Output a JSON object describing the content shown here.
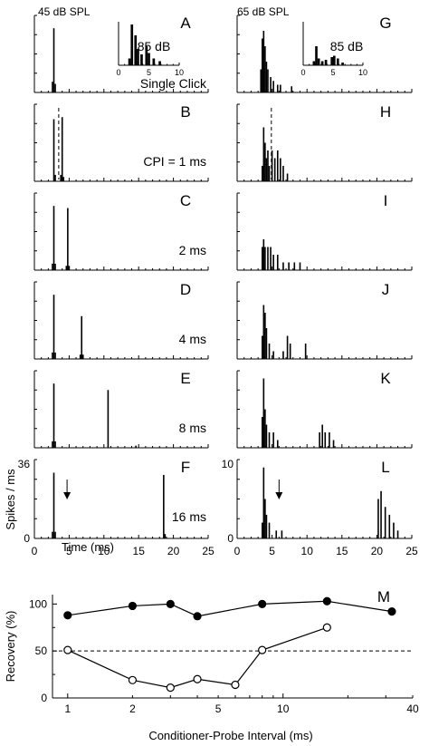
{
  "header": {
    "left": "45 dB SPL",
    "right": "65 dB SPL"
  },
  "inset": {
    "level": "85 dB",
    "xticks": [
      "0",
      "5",
      "10"
    ]
  },
  "raster_axes": {
    "ylabel": "Spikes / ms",
    "xlabel": "Time (ms)",
    "xticks": [
      "0",
      "5",
      "10",
      "15",
      "20",
      "25"
    ],
    "left_ymax": "36",
    "right_ymax": "10",
    "ymin": "0"
  },
  "rows": [
    {
      "left": "A",
      "right": "G",
      "text": "Single Click"
    },
    {
      "left": "B",
      "right": "H",
      "text": "CPI = 1 ms"
    },
    {
      "left": "C",
      "right": "I",
      "text": "2 ms"
    },
    {
      "left": "D",
      "right": "J",
      "text": "4 ms"
    },
    {
      "left": "E",
      "right": "K",
      "text": "8 ms"
    },
    {
      "left": "F",
      "right": "L",
      "text": "16 ms"
    }
  ],
  "recovery": {
    "panel": "M",
    "ylabel": "Recovery (%)",
    "xlabel": "Conditioner-Probe Interval (ms)",
    "yticks": [
      "0",
      "50",
      "100"
    ],
    "xticks": [
      "1",
      "2",
      "5",
      "10",
      "40"
    ]
  },
  "chart_data": [
    {
      "type": "bar",
      "panel": "A",
      "level": "45 dB SPL",
      "xlabel": "Time (ms)",
      "ylabel": "Spikes / ms",
      "xlim": [
        0,
        25
      ],
      "ylim": [
        0,
        36
      ],
      "bin_ms": 0.2,
      "bars": [
        [
          2.6,
          5
        ],
        [
          2.8,
          30
        ],
        [
          3.0,
          4
        ]
      ],
      "inset": {
        "label": "85 dB",
        "xlim": [
          0,
          10
        ],
        "bars": [
          [
            1.8,
            5
          ],
          [
            2.2,
            30
          ],
          [
            2.8,
            22
          ],
          [
            3.2,
            12
          ],
          [
            3.8,
            8
          ],
          [
            4.6,
            14
          ],
          [
            5.0,
            9
          ],
          [
            5.8,
            5
          ],
          [
            6.8,
            3
          ]
        ]
      }
    },
    {
      "type": "bar",
      "panel": "G",
      "level": "65 dB SPL",
      "xlim": [
        0,
        25
      ],
      "ylim": [
        0,
        10
      ],
      "bin_ms": 0.2,
      "bars": [
        [
          3.4,
          3
        ],
        [
          3.6,
          7
        ],
        [
          3.8,
          8
        ],
        [
          4.0,
          6
        ],
        [
          4.2,
          4
        ],
        [
          4.4,
          3
        ],
        [
          4.8,
          2
        ],
        [
          5.2,
          1.5
        ],
        [
          5.8,
          1
        ],
        [
          6.2,
          1
        ],
        [
          7.8,
          0.8
        ]
      ],
      "inset": {
        "label": "85 dB",
        "xlim": [
          0,
          10
        ],
        "bars": [
          [
            1.8,
            3
          ],
          [
            2.2,
            14
          ],
          [
            2.6,
            5
          ],
          [
            3.2,
            3
          ],
          [
            3.8,
            4
          ],
          [
            4.8,
            6
          ],
          [
            5.2,
            7
          ],
          [
            5.8,
            5
          ],
          [
            6.6,
            2
          ]
        ]
      }
    },
    {
      "type": "bar",
      "panel": "B",
      "cpi_ms": 1,
      "xlim": [
        0,
        25
      ],
      "ylim": [
        0,
        36
      ],
      "bin_ms": 0.2,
      "bars": [
        [
          2.8,
          29
        ],
        [
          3.0,
          3
        ],
        [
          3.8,
          3
        ],
        [
          4.0,
          30
        ],
        [
          4.2,
          2
        ]
      ]
    },
    {
      "type": "bar",
      "panel": "H",
      "cpi_ms": 1,
      "xlim": [
        0,
        25
      ],
      "ylim": [
        0,
        10
      ],
      "bin_ms": 0.2,
      "bars": [
        [
          3.6,
          2
        ],
        [
          3.8,
          7
        ],
        [
          4.0,
          5
        ],
        [
          4.2,
          3
        ],
        [
          4.4,
          4
        ],
        [
          4.6,
          2
        ],
        [
          5.0,
          4
        ],
        [
          5.4,
          3
        ],
        [
          5.8,
          4
        ],
        [
          6.2,
          3
        ],
        [
          6.6,
          2
        ],
        [
          7.2,
          1
        ]
      ]
    },
    {
      "type": "bar",
      "panel": "C",
      "cpi_ms": 2,
      "xlim": [
        0,
        25
      ],
      "ylim": [
        0,
        36
      ],
      "bin_ms": 0.2,
      "bars": [
        [
          2.6,
          3
        ],
        [
          2.8,
          30
        ],
        [
          3.0,
          3
        ],
        [
          4.6,
          2
        ],
        [
          4.8,
          29
        ],
        [
          5.0,
          2
        ]
      ]
    },
    {
      "type": "bar",
      "panel": "I",
      "cpi_ms": 2,
      "xlim": [
        0,
        25
      ],
      "ylim": [
        0,
        10
      ],
      "bin_ms": 0.2,
      "bars": [
        [
          3.6,
          3
        ],
        [
          3.8,
          4
        ],
        [
          4.0,
          3
        ],
        [
          4.4,
          3
        ],
        [
          4.8,
          3
        ],
        [
          5.2,
          2
        ],
        [
          5.8,
          2
        ],
        [
          6.6,
          1
        ],
        [
          7.4,
          1
        ],
        [
          8.2,
          1
        ],
        [
          9.0,
          1
        ]
      ]
    },
    {
      "type": "bar",
      "panel": "D",
      "cpi_ms": 4,
      "xlim": [
        0,
        25
      ],
      "ylim": [
        0,
        36
      ],
      "bin_ms": 0.2,
      "bars": [
        [
          2.6,
          3
        ],
        [
          2.8,
          30
        ],
        [
          3.0,
          3
        ],
        [
          6.6,
          2
        ],
        [
          6.8,
          20
        ],
        [
          7.0,
          2
        ]
      ]
    },
    {
      "type": "bar",
      "panel": "J",
      "cpi_ms": 4,
      "xlim": [
        0,
        25
      ],
      "ylim": [
        0,
        10
      ],
      "bin_ms": 0.2,
      "bars": [
        [
          3.6,
          3
        ],
        [
          3.8,
          7
        ],
        [
          4.0,
          6
        ],
        [
          4.2,
          4
        ],
        [
          4.6,
          2
        ],
        [
          5.2,
          1
        ],
        [
          6.6,
          1
        ],
        [
          7.2,
          3
        ],
        [
          7.6,
          2
        ],
        [
          9.8,
          2
        ]
      ]
    },
    {
      "type": "bar",
      "panel": "E",
      "cpi_ms": 8,
      "xlim": [
        0,
        25
      ],
      "ylim": [
        0,
        36
      ],
      "bin_ms": 0.2,
      "bars": [
        [
          2.6,
          3
        ],
        [
          2.8,
          30
        ],
        [
          3.0,
          3
        ],
        [
          10.6,
          27
        ],
        [
          14.6,
          1
        ]
      ]
    },
    {
      "type": "bar",
      "panel": "K",
      "cpi_ms": 8,
      "xlim": [
        0,
        25
      ],
      "ylim": [
        0,
        10
      ],
      "bin_ms": 0.2,
      "bars": [
        [
          3.6,
          4
        ],
        [
          3.8,
          9
        ],
        [
          4.0,
          5
        ],
        [
          4.2,
          3
        ],
        [
          4.6,
          2
        ],
        [
          5.2,
          2
        ],
        [
          5.8,
          1
        ],
        [
          11.8,
          2
        ],
        [
          12.2,
          3
        ],
        [
          12.6,
          2
        ],
        [
          13.2,
          2
        ],
        [
          13.8,
          1
        ]
      ]
    },
    {
      "type": "bar",
      "panel": "F",
      "cpi_ms": 16,
      "xlim": [
        0,
        25
      ],
      "ylim": [
        0,
        36
      ],
      "bin_ms": 0.2,
      "annotation": "arrow at 4.7 ms",
      "bars": [
        [
          2.6,
          3
        ],
        [
          2.8,
          30
        ],
        [
          3.0,
          3
        ],
        [
          18.6,
          29
        ],
        [
          18.8,
          2
        ]
      ]
    },
    {
      "type": "bar",
      "panel": "L",
      "cpi_ms": 16,
      "xlim": [
        0,
        25
      ],
      "ylim": [
        0,
        10
      ],
      "bin_ms": 0.2,
      "annotation": "arrow at 6.0 ms",
      "bars": [
        [
          3.6,
          2
        ],
        [
          3.8,
          9
        ],
        [
          4.0,
          5
        ],
        [
          4.2,
          3
        ],
        [
          4.6,
          2
        ],
        [
          5.6,
          1
        ],
        [
          6.4,
          1
        ],
        [
          20.2,
          5
        ],
        [
          20.6,
          6
        ],
        [
          21.2,
          4
        ],
        [
          21.8,
          3
        ],
        [
          22.4,
          2
        ],
        [
          23.0,
          1
        ]
      ]
    },
    {
      "type": "line",
      "panel": "M",
      "xlabel": "Conditioner-Probe Interval (ms)",
      "ylabel": "Recovery (%)",
      "xscale": "log",
      "xlim": [
        0.85,
        40
      ],
      "ylim": [
        0,
        110
      ],
      "reference_line": 50,
      "series": [
        {
          "marker": "filled",
          "x": [
            1,
            2,
            3,
            4,
            8,
            16,
            32
          ],
          "y": [
            88,
            98,
            100,
            87,
            100,
            103,
            92
          ]
        },
        {
          "marker": "open",
          "x": [
            1,
            2,
            3,
            4,
            6,
            8,
            16
          ],
          "y": [
            51,
            19,
            11,
            20,
            14,
            51,
            75
          ]
        }
      ]
    }
  ]
}
